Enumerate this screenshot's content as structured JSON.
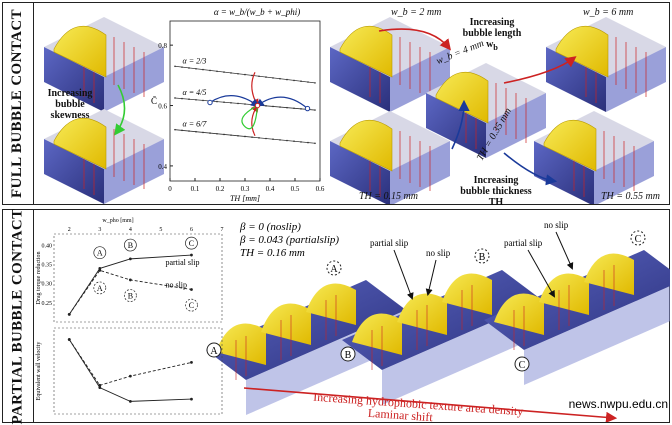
{
  "panels": {
    "top_label": "FULL BUBBLE CONTACT",
    "bottom_label": "PARTIAL BUBBLE CONTACT"
  },
  "top": {
    "skewness_label": "Increasing bubble skewness",
    "length_label": "Increasing bubble length w",
    "length_sub": "b",
    "thickness_label": "Increasing bubble thickness TH",
    "wb2": "w_b = 2 mm",
    "wb4": "w_b = 4 mm",
    "wb6": "w_b = 6 mm",
    "th015": "TH = 0.15 mm",
    "th035": "TH = 0.35 mm",
    "th055": "TH = 0.55 mm",
    "formula": "α = w_b/(w_b + w_phi)"
  },
  "chart_top": {
    "type": "line",
    "xlabel": "TH [mm]",
    "ylabel": "C̄",
    "xticks": [
      "0",
      "0.1",
      "0.2",
      "0.3",
      "0.4",
      "0.5",
      "0.6"
    ],
    "yticks": [
      "0.4",
      "0.6",
      "0.8"
    ],
    "xlim": [
      0,
      0.6
    ],
    "ylim": [
      0.35,
      0.88
    ],
    "series": [
      {
        "name": "α = 2/3",
        "x": [
          0.02,
          0.58
        ],
        "y": [
          0.73,
          0.675
        ]
      },
      {
        "name": "α = 4/5",
        "x": [
          0.02,
          0.58
        ],
        "y": [
          0.625,
          0.585
        ]
      },
      {
        "name": "α = 6/7",
        "x": [
          0.02,
          0.58
        ],
        "y": [
          0.52,
          0.475
        ]
      }
    ],
    "grid": false
  },
  "bottom": {
    "beta1": "β = 0 (noslip)",
    "beta2": "β = 0.043 (partialslip)",
    "th": "TH = 0.16 mm",
    "partial_slip": "partial slip",
    "no_slip": "no slip",
    "density": "Increasing hydrophobic texture area density",
    "laminar": "Laminar shift",
    "case_a": "A",
    "case_b": "B",
    "case_c": "C",
    "source": "news.nwpu.edu.cn"
  },
  "chart_bottom": {
    "type": "line",
    "top_xlabel": "w_pho [mm]",
    "xticks": [
      "2",
      "3",
      "4",
      "5",
      "6",
      "7"
    ],
    "upper": {
      "ylabel": "Drag torque reduction",
      "yticks": [
        "0.25",
        "0.30",
        "0.35",
        "0.40"
      ],
      "ylim": [
        0.2,
        0.43
      ],
      "series": [
        {
          "name": "partial slip",
          "x": [
            2,
            3,
            4,
            6
          ],
          "y": [
            0.22,
            0.34,
            0.365,
            0.375
          ]
        },
        {
          "name": "no slip",
          "x": [
            2,
            3,
            4,
            6
          ],
          "y": [
            0.22,
            0.335,
            0.31,
            0.285
          ]
        }
      ]
    },
    "lower": {
      "ylabel": "Equivalent wall velocity",
      "series": [
        {
          "name": "partial slip",
          "x": [
            2,
            3,
            4,
            6
          ],
          "y": [
            0.9,
            0.5,
            0.58,
            0.7
          ]
        },
        {
          "name": "no slip",
          "x": [
            2,
            3,
            4,
            6
          ],
          "y": [
            0.9,
            0.48,
            0.36,
            0.38
          ]
        }
      ]
    }
  },
  "colors": {
    "bubble": "#f2e24a",
    "floor": "#3f4aa8",
    "arrow_red": "#cc2222",
    "arrow_green": "#33cc33",
    "arrow_blue": "#1a3a9a"
  }
}
